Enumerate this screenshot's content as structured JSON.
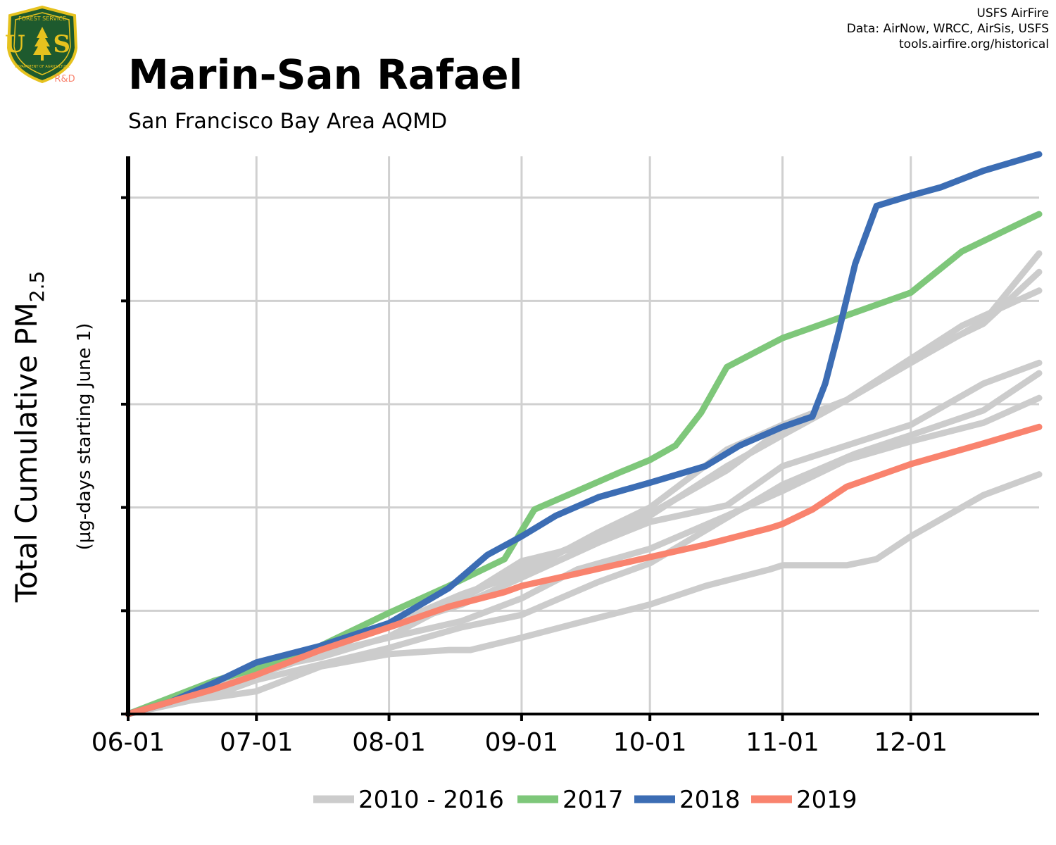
{
  "title": "Marin-San Rafael",
  "subtitle": "San Francisco Bay Area AQMD",
  "credits": [
    "USFS AirFire",
    "Data: AirNow, WRCC, AirSis, USFS",
    "tools.airfire.org/historical"
  ],
  "logo": {
    "top_text": "FOREST SERVICE",
    "letters": "U S",
    "bottom_text": "DEPARTMENT OF AGRICULTURE",
    "tag": "R&D"
  },
  "colors": {
    "historical": "#cccccc",
    "s2017": "#7ec77a",
    "s2018": "#3c6db4",
    "s2019": "#f9836e",
    "grid": "#d0d0d0",
    "logo_green": "#1e5a2e",
    "logo_gold": "#e6c21e",
    "rd": "#f9836e"
  },
  "chart_data": {
    "type": "line",
    "title": "Marin-San Rafael",
    "subtitle": "San Francisco Bay Area AQMD",
    "ylabel": "Total Cumulative PM2.5",
    "ylabel_sub": "(µg-days starting June 1)",
    "x_ticks": [
      "06-01",
      "07-01",
      "08-01",
      "09-01",
      "10-01",
      "11-01",
      "12-01"
    ],
    "x_tick_days": [
      0,
      30,
      61,
      92,
      122,
      153,
      183
    ],
    "xlim_days": [
      0,
      213
    ],
    "ylim": [
      0,
      2700
    ],
    "y_ticks": [
      0,
      500,
      1000,
      1500,
      2000,
      2500
    ],
    "y_tick_labels_shown": false,
    "grid": true,
    "legend_position": "bottom",
    "legend": [
      "2010 - 2016",
      "2017",
      "2018",
      "2019"
    ],
    "historical_label": "2010 - 2016",
    "historical": [
      {
        "x": [
          0,
          10,
          20,
          30,
          45,
          61,
          75,
          80,
          92,
          105,
          122,
          135,
          150,
          153,
          168,
          175,
          183,
          200,
          213
        ],
        "y": [
          0,
          55,
          80,
          110,
          230,
          290,
          310,
          310,
          370,
          440,
          530,
          620,
          700,
          720,
          720,
          750,
          860,
          1060,
          1160
        ]
      },
      {
        "x": [
          0,
          20,
          30,
          45,
          61,
          78,
          92,
          110,
          122,
          140,
          153,
          170,
          183,
          200,
          213
        ],
        "y": [
          0,
          90,
          165,
          240,
          320,
          420,
          480,
          640,
          730,
          950,
          1110,
          1260,
          1350,
          1470,
          1650
        ]
      },
      {
        "x": [
          0,
          20,
          30,
          45,
          61,
          78,
          92,
          105,
          122,
          140,
          153,
          168,
          183,
          200,
          213
        ],
        "y": [
          0,
          120,
          190,
          290,
          370,
          450,
          560,
          700,
          800,
          960,
          1080,
          1230,
          1320,
          1410,
          1530
        ]
      },
      {
        "x": [
          0,
          20,
          30,
          45,
          61,
          78,
          92,
          110,
          122,
          140,
          153,
          168,
          183,
          200,
          213
        ],
        "y": [
          0,
          150,
          215,
          275,
          375,
          560,
          740,
          830,
          930,
          1010,
          1200,
          1300,
          1400,
          1600,
          1700
        ]
      },
      {
        "x": [
          0,
          20,
          30,
          45,
          61,
          78,
          92,
          110,
          122,
          140,
          153,
          168,
          183,
          195,
          213
        ],
        "y": [
          0,
          120,
          210,
          300,
          430,
          580,
          680,
          880,
          1000,
          1280,
          1400,
          1520,
          1720,
          1880,
          2050
        ]
      },
      {
        "x": [
          0,
          20,
          30,
          45,
          61,
          78,
          92,
          110,
          122,
          140,
          153,
          168,
          183,
          200,
          213
        ],
        "y": [
          0,
          130,
          230,
          320,
          430,
          560,
          710,
          860,
          970,
          1180,
          1380,
          1520,
          1720,
          1890,
          2140
        ]
      },
      {
        "x": [
          0,
          20,
          30,
          45,
          61,
          78,
          92,
          110,
          122,
          140,
          153,
          168,
          183,
          200,
          213
        ],
        "y": [
          0,
          140,
          230,
          320,
          420,
          530,
          660,
          830,
          960,
          1200,
          1350,
          1520,
          1700,
          1900,
          2230
        ]
      }
    ],
    "series": [
      {
        "name": "2017",
        "x": [
          0,
          10,
          20,
          30,
          45,
          61,
          75,
          88,
          95,
          105,
          115,
          122,
          128,
          134,
          140,
          153,
          168,
          183,
          195,
          213
        ],
        "y": [
          0,
          80,
          160,
          220,
          330,
          490,
          620,
          750,
          990,
          1080,
          1170,
          1230,
          1300,
          1460,
          1680,
          1820,
          1930,
          2040,
          2240,
          2420
        ]
      },
      {
        "name": "2018",
        "x": [
          0,
          10,
          20,
          30,
          45,
          61,
          75,
          84,
          92,
          100,
          110,
          122,
          135,
          143,
          153,
          160,
          163,
          166,
          170,
          175,
          183,
          190,
          200,
          213
        ],
        "y": [
          0,
          60,
          150,
          250,
          330,
          440,
          610,
          770,
          860,
          960,
          1050,
          1120,
          1200,
          1300,
          1390,
          1440,
          1600,
          1840,
          2180,
          2460,
          2510,
          2550,
          2630,
          2710
        ]
      },
      {
        "name": "2019",
        "x": [
          0,
          10,
          20,
          30,
          45,
          61,
          75,
          88,
          92,
          105,
          122,
          135,
          150,
          153,
          160,
          168,
          183,
          200,
          213
        ],
        "y": [
          0,
          60,
          120,
          190,
          310,
          420,
          520,
          590,
          620,
          680,
          760,
          820,
          900,
          920,
          990,
          1100,
          1210,
          1310,
          1390
        ]
      }
    ]
  }
}
